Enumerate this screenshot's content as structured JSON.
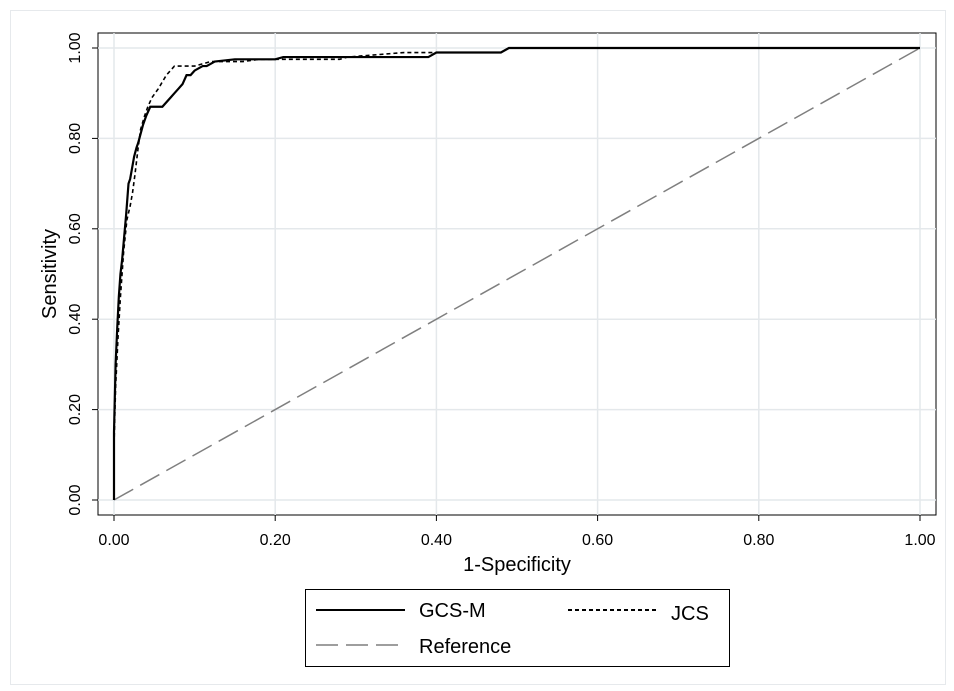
{
  "chart_data": {
    "type": "line",
    "title": "",
    "xlabel": "1-Specificity",
    "ylabel": "Sensitivity",
    "xlim": [
      0,
      1
    ],
    "ylim": [
      0,
      1
    ],
    "xticks": [
      "0.00",
      "0.20",
      "0.40",
      "0.60",
      "0.80",
      "1.00"
    ],
    "yticks": [
      "0.00",
      "0.20",
      "0.40",
      "0.60",
      "0.80",
      "1.00"
    ],
    "grid": true,
    "legend_position": "bottom",
    "series": [
      {
        "name": "GCS-M",
        "style": "solid",
        "color": "#000000",
        "x": [
          0,
          0,
          0.002,
          0.004,
          0.006,
          0.008,
          0.01,
          0.012,
          0.015,
          0.018,
          0.02,
          0.022,
          0.025,
          0.028,
          0.03,
          0.033,
          0.036,
          0.04,
          0.045,
          0.05,
          0.06,
          0.065,
          0.07,
          0.075,
          0.08,
          0.085,
          0.09,
          0.095,
          0.1,
          0.11,
          0.115,
          0.12,
          0.125,
          0.15,
          0.2,
          0.21,
          0.3,
          0.39,
          0.4,
          0.48,
          0.49,
          1.0
        ],
        "y": [
          0,
          0.15,
          0.3,
          0.38,
          0.45,
          0.5,
          0.53,
          0.57,
          0.63,
          0.7,
          0.71,
          0.73,
          0.76,
          0.78,
          0.79,
          0.81,
          0.83,
          0.85,
          0.87,
          0.87,
          0.87,
          0.88,
          0.89,
          0.9,
          0.91,
          0.92,
          0.94,
          0.94,
          0.95,
          0.96,
          0.96,
          0.965,
          0.97,
          0.975,
          0.975,
          0.98,
          0.98,
          0.98,
          0.99,
          0.99,
          1.0,
          1.0
        ]
      },
      {
        "name": "JCS",
        "style": "dashed",
        "color": "#000000",
        "x": [
          0,
          0,
          0.002,
          0.005,
          0.008,
          0.012,
          0.016,
          0.02,
          0.023,
          0.026,
          0.03,
          0.033,
          0.038,
          0.042,
          0.047,
          0.055,
          0.065,
          0.075,
          0.08,
          0.09,
          0.1,
          0.12,
          0.16,
          0.18,
          0.28,
          0.29,
          0.36,
          0.37,
          0.48,
          0.49,
          1.0
        ],
        "y": [
          0,
          0.12,
          0.25,
          0.36,
          0.45,
          0.55,
          0.62,
          0.65,
          0.68,
          0.72,
          0.78,
          0.82,
          0.85,
          0.87,
          0.89,
          0.91,
          0.94,
          0.96,
          0.96,
          0.96,
          0.96,
          0.97,
          0.97,
          0.975,
          0.975,
          0.98,
          0.99,
          0.99,
          0.99,
          1.0,
          1.0
        ]
      },
      {
        "name": "Reference",
        "style": "longdash",
        "color": "#7f7f7f",
        "x": [
          0,
          1
        ],
        "y": [
          0,
          1
        ]
      }
    ]
  }
}
